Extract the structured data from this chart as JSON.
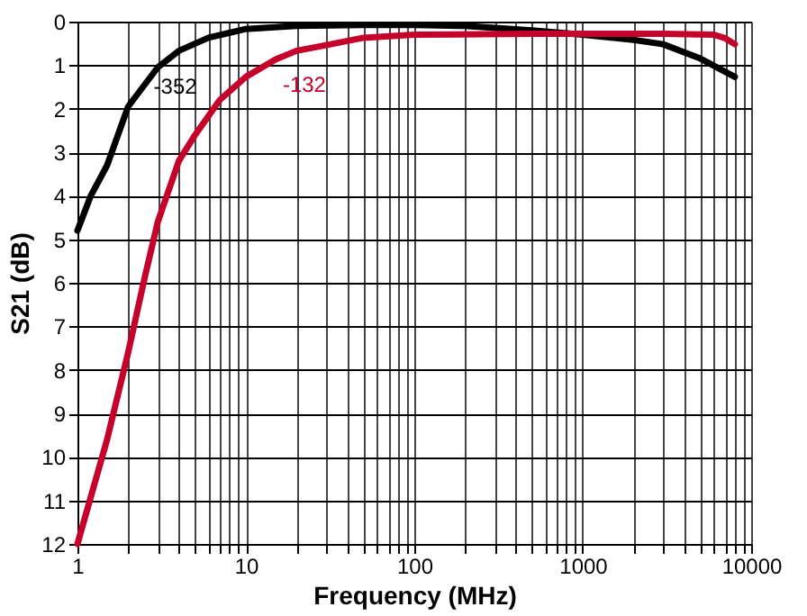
{
  "chart_data": {
    "type": "line",
    "xlabel": "Frequency (MHz)",
    "ylabel": "S21 (dB)",
    "log": "x",
    "grid": true,
    "marker": "none",
    "line_style": "solid",
    "xlim": [
      1,
      10000
    ],
    "ylim": [
      12,
      0
    ],
    "xticks": [
      1,
      {
        "value": 2,
        "label": null
      },
      {
        "value": 3,
        "label": null
      },
      {
        "value": 4,
        "label": null
      },
      {
        "value": 5,
        "label": null
      },
      {
        "value": 6,
        "label": null
      },
      {
        "value": 7,
        "label": null
      },
      {
        "value": 8,
        "label": null
      },
      {
        "value": 9,
        "label": null
      },
      10,
      {
        "value": 20,
        "label": null
      },
      {
        "value": 30,
        "label": null
      },
      {
        "value": 40,
        "label": null
      },
      {
        "value": 50,
        "label": null
      },
      {
        "value": 60,
        "label": null
      },
      {
        "value": 70,
        "label": null
      },
      {
        "value": 80,
        "label": null
      },
      {
        "value": 90,
        "label": null
      },
      100,
      {
        "value": 200,
        "label": null
      },
      {
        "value": 300,
        "label": null
      },
      {
        "value": 400,
        "label": null
      },
      {
        "value": 500,
        "label": null
      },
      {
        "value": 600,
        "label": null
      },
      {
        "value": 700,
        "label": null
      },
      {
        "value": 800,
        "label": null
      },
      {
        "value": 900,
        "label": null
      },
      1000,
      {
        "value": 2000,
        "label": null
      },
      {
        "value": 3000,
        "label": null
      },
      {
        "value": 4000,
        "label": null
      },
      {
        "value": 5000,
        "label": null
      },
      {
        "value": 6000,
        "label": null
      },
      {
        "value": 7000,
        "label": null
      },
      {
        "value": 8000,
        "label": null
      },
      {
        "value": 9000,
        "label": null
      },
      10000
    ],
    "yticks": [
      0,
      1,
      2,
      3,
      4,
      5,
      6,
      7,
      8,
      9,
      10,
      11,
      12
    ],
    "series": [
      {
        "name": "-352",
        "color": "#000000",
        "x": [
          1,
          1.2,
          1.5,
          2,
          3,
          4,
          6,
          10,
          20,
          50,
          100,
          200,
          500,
          1000,
          2000,
          3000,
          5000,
          8000
        ],
        "values": [
          4.8,
          4.0,
          3.3,
          1.95,
          1.05,
          0.67,
          0.37,
          0.17,
          0.1,
          0.08,
          0.08,
          0.1,
          0.2,
          0.3,
          0.42,
          0.52,
          0.85,
          1.27
        ]
      },
      {
        "name": "-132",
        "color": "#c4002b",
        "x": [
          1,
          1.5,
          2,
          2.5,
          3,
          4,
          5,
          7,
          10,
          15,
          20,
          30,
          50,
          100,
          500,
          1000,
          3000,
          6000,
          7000,
          8000
        ],
        "values": [
          12,
          9.6,
          7.6,
          5.9,
          4.6,
          3.2,
          2.6,
          1.8,
          1.27,
          0.87,
          0.67,
          0.54,
          0.37,
          0.3,
          0.28,
          0.28,
          0.28,
          0.3,
          0.38,
          0.52
        ]
      }
    ]
  }
}
